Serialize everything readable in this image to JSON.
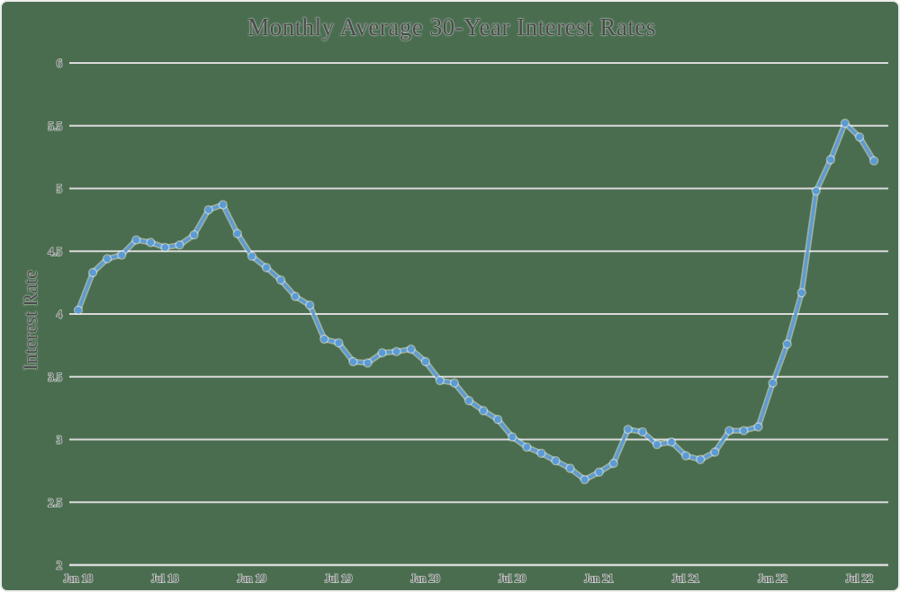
{
  "window": {
    "background_color": "#4a6d50",
    "border_color": "#ececec"
  },
  "chart_data": {
    "type": "line",
    "title": "Monthly Average 30-Year Interest Rates",
    "xlabel": "",
    "ylabel": "Interest Rate",
    "ylim": [
      2,
      6
    ],
    "y_ticks": [
      "6",
      "5.5",
      "5",
      "4.5",
      "4",
      "3.5",
      "3",
      "2.5",
      "2"
    ],
    "y_tick_values": [
      6,
      5.5,
      5,
      4.5,
      4,
      3.5,
      3,
      2.5,
      2
    ],
    "x_tick_labels": [
      "Jan 18",
      "Jul 18",
      "Jan 19",
      "Jul 19",
      "Jan 20",
      "Jul 20",
      "Jan 21",
      "Jul 21",
      "Jan 22",
      "Jul 22"
    ],
    "x_tick_indices": [
      0,
      6,
      12,
      18,
      24,
      30,
      36,
      42,
      48,
      54
    ],
    "grid": true,
    "legend": "none",
    "x": [
      "Jan 18",
      "Feb 18",
      "Mar 18",
      "Apr 18",
      "May 18",
      "Jun 18",
      "Jul 18",
      "Aug 18",
      "Sep 18",
      "Oct 18",
      "Nov 18",
      "Dec 18",
      "Jan 19",
      "Feb 19",
      "Mar 19",
      "Apr 19",
      "May 19",
      "Jun 19",
      "Jul 19",
      "Aug 19",
      "Sep 19",
      "Oct 19",
      "Nov 19",
      "Dec 19",
      "Jan 20",
      "Feb 20",
      "Mar 20",
      "Apr 20",
      "May 20",
      "Jun 20",
      "Jul 20",
      "Aug 20",
      "Sep 20",
      "Oct 20",
      "Nov 20",
      "Dec 20",
      "Jan 21",
      "Feb 21",
      "Mar 21",
      "Apr 21",
      "May 21",
      "Jun 21",
      "Jul 21",
      "Aug 21",
      "Sep 21",
      "Oct 21",
      "Nov 21",
      "Dec 21",
      "Jan 22",
      "Feb 22",
      "Mar 22",
      "Apr 22",
      "May 22",
      "Jun 22",
      "Jul 22",
      "Aug 22"
    ],
    "values": [
      4.03,
      4.33,
      4.44,
      4.47,
      4.59,
      4.57,
      4.53,
      4.55,
      4.63,
      4.83,
      4.87,
      4.64,
      4.46,
      4.37,
      4.27,
      4.14,
      4.07,
      3.8,
      3.77,
      3.62,
      3.61,
      3.69,
      3.7,
      3.72,
      3.62,
      3.47,
      3.45,
      3.31,
      3.23,
      3.16,
      3.02,
      2.94,
      2.89,
      2.83,
      2.77,
      2.68,
      2.74,
      2.81,
      3.08,
      3.06,
      2.96,
      2.98,
      2.87,
      2.84,
      2.9,
      3.07,
      3.07,
      3.1,
      3.45,
      3.76,
      4.17,
      4.98,
      5.23,
      5.52,
      5.41,
      5.22
    ],
    "line_color": "#5b9bd5",
    "line_halo_color": "rgba(255,255,255,0.45)",
    "marker": "circle",
    "gridline_color": "#d9d9d9",
    "text_color": "#4a4a4a"
  }
}
